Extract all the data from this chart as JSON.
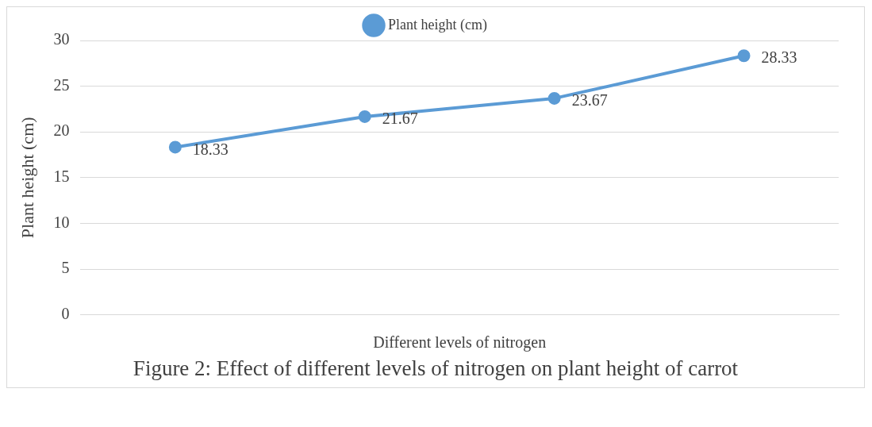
{
  "chart_data": {
    "type": "line",
    "title": "Figure 2: Effect of different levels of nitrogen on plant height of carrot",
    "xlabel": "Different levels of nitrogen",
    "ylabel": "Plant height (cm)",
    "categories": [
      null,
      null,
      null,
      null
    ],
    "series": [
      {
        "name": "Plant height (cm)",
        "color": "#5b9bd5",
        "values": [
          18.33,
          21.67,
          23.67,
          28.33
        ]
      }
    ],
    "ylim": [
      0,
      30
    ],
    "yticks": [
      0,
      5,
      10,
      15,
      20,
      25,
      30
    ],
    "grid": "y",
    "legend": "top",
    "data_labels": true,
    "marker": "circle",
    "line_style": "solid"
  }
}
